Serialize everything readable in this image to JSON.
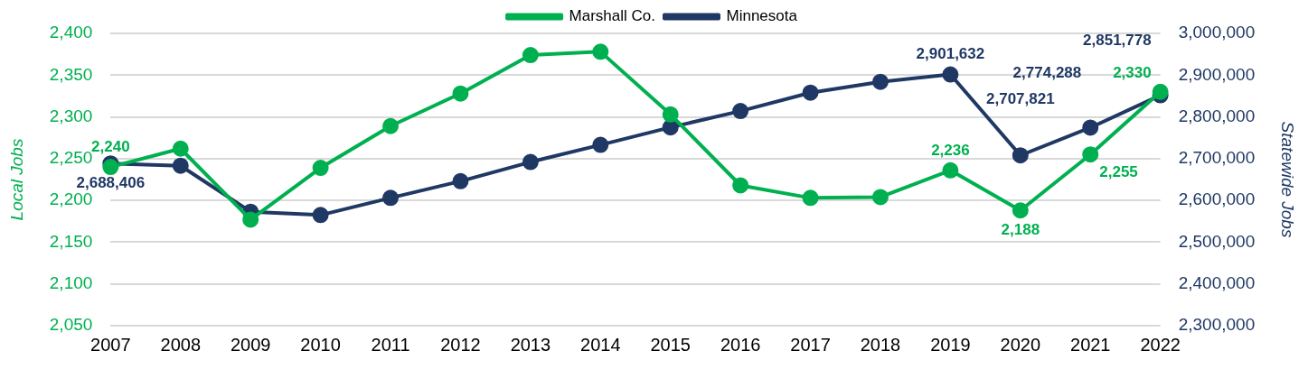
{
  "chart_data": {
    "type": "line",
    "categories": [
      "2007",
      "2008",
      "2009",
      "2010",
      "2011",
      "2012",
      "2013",
      "2014",
      "2015",
      "2016",
      "2017",
      "2018",
      "2019",
      "2020",
      "2021",
      "2022"
    ],
    "series": [
      {
        "name": "Marshall Co.",
        "color": "#00b050",
        "values": [
          2240,
          2262,
          2177,
          2239,
          2289,
          2328,
          2374,
          2378,
          2303,
          2218,
          2203,
          2204,
          2236,
          2188,
          2255,
          2330
        ],
        "value_labels": [
          "2,240",
          null,
          null,
          null,
          null,
          null,
          null,
          null,
          null,
          null,
          null,
          null,
          "2,236",
          "2,188",
          "2,255",
          "2,330"
        ]
      },
      {
        "name": "Minnesota",
        "color": "#1f3864",
        "axis": "y2",
        "values": [
          2688406,
          2683000,
          2573000,
          2565000,
          2606000,
          2646000,
          2692000,
          2733000,
          2775000,
          2814000,
          2858000,
          2884000,
          2901632,
          2707821,
          2774288,
          2851778
        ],
        "value_labels": [
          "2,688,406",
          null,
          null,
          null,
          null,
          null,
          null,
          null,
          null,
          null,
          null,
          null,
          "2,901,632",
          "2,707,821",
          "2,774,288",
          "2,851,778"
        ]
      }
    ],
    "ylabel": "Local Jobs",
    "y2label": "Statewide Jobs",
    "ylim": [
      2050,
      2400
    ],
    "yticks": [
      {
        "value": 2050,
        "label": "2,050"
      },
      {
        "value": 2100,
        "label": "2,100"
      },
      {
        "value": 2150,
        "label": "2,150"
      },
      {
        "value": 2200,
        "label": "2,200"
      },
      {
        "value": 2250,
        "label": "2,250"
      },
      {
        "value": 2300,
        "label": "2,300"
      },
      {
        "value": 2350,
        "label": "2,350"
      },
      {
        "value": 2400,
        "label": "2,400"
      }
    ],
    "y2lim": [
      2300000,
      3000000
    ],
    "y2ticks": [
      {
        "value": 2300000,
        "label": "2,300,000"
      },
      {
        "value": 2400000,
        "label": "2,400,000"
      },
      {
        "value": 2500000,
        "label": "2,500,000"
      },
      {
        "value": 2600000,
        "label": "2,600,000"
      },
      {
        "value": 2700000,
        "label": "2,700,000"
      },
      {
        "value": 2800000,
        "label": "2,800,000"
      },
      {
        "value": 2900000,
        "label": "2,900,000"
      },
      {
        "value": 3000000,
        "label": "3,000,000"
      }
    ],
    "grid": "y",
    "legend": "top",
    "marker": "circle",
    "line_style": "solid"
  }
}
